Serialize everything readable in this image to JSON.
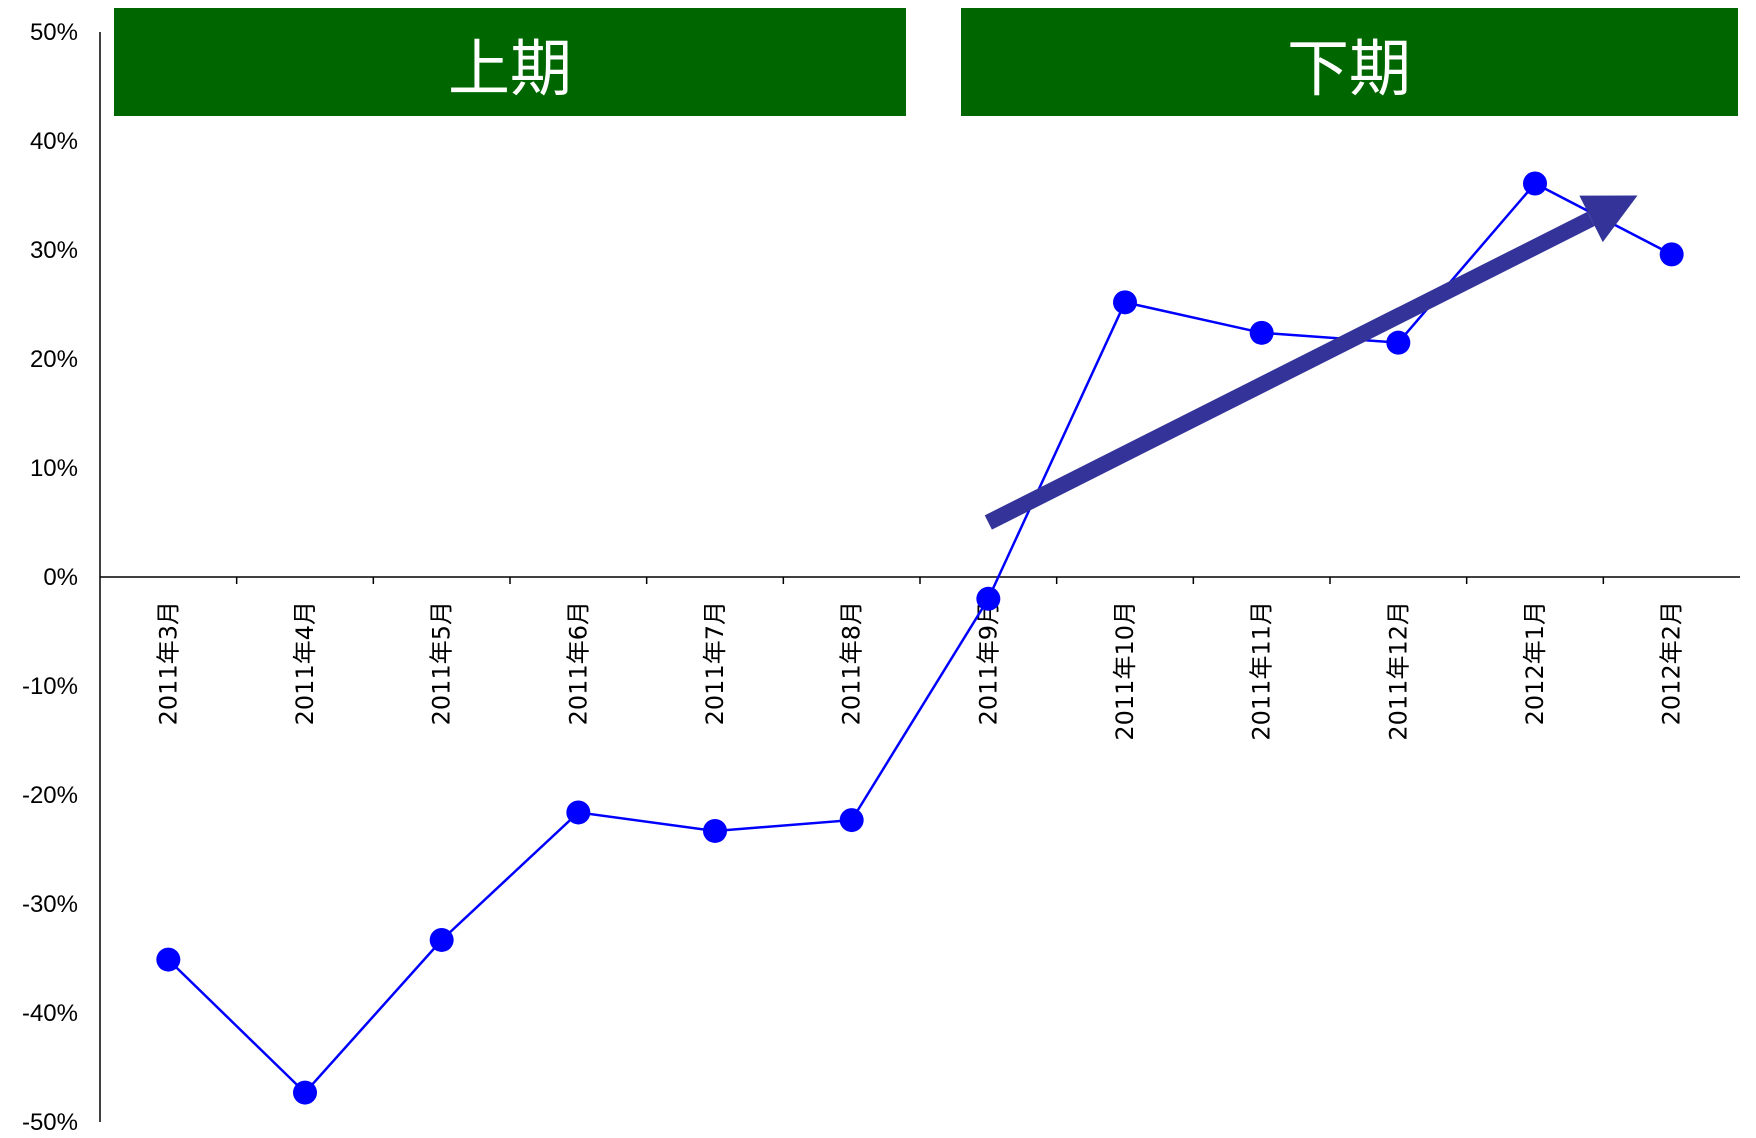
{
  "chart_data": {
    "type": "line",
    "categories": [
      "2011年3月",
      "2011年4月",
      "2011年5月",
      "2011年6月",
      "2011年7月",
      "2011年8月",
      "2011年9月",
      "2011年10月",
      "2011年11月",
      "2011年12月",
      "2012年1月",
      "2012年2月"
    ],
    "series": [
      {
        "values": [
          -35.1,
          -47.3,
          -33.3,
          -21.6,
          -23.3,
          -22.3,
          -2.0,
          25.2,
          22.4,
          21.5,
          36.1,
          29.6
        ],
        "color": "#0000ff"
      }
    ],
    "ylim": [
      -50,
      50
    ],
    "yticks": [
      50,
      40,
      30,
      20,
      10,
      0,
      -10,
      -20,
      -30,
      -40,
      -50
    ],
    "ytick_format": "{v}%",
    "grid": false,
    "annotations": {
      "periods": [
        {
          "label": "上期",
          "color": "#006600"
        },
        {
          "label": "下期",
          "color": "#006600"
        }
      ],
      "trend_arrow": {
        "color": "#333399",
        "from": {
          "category": "2011年9月",
          "y": 5
        },
        "to": {
          "category": "2012年1月+0.75",
          "y": 35
        }
      }
    }
  }
}
